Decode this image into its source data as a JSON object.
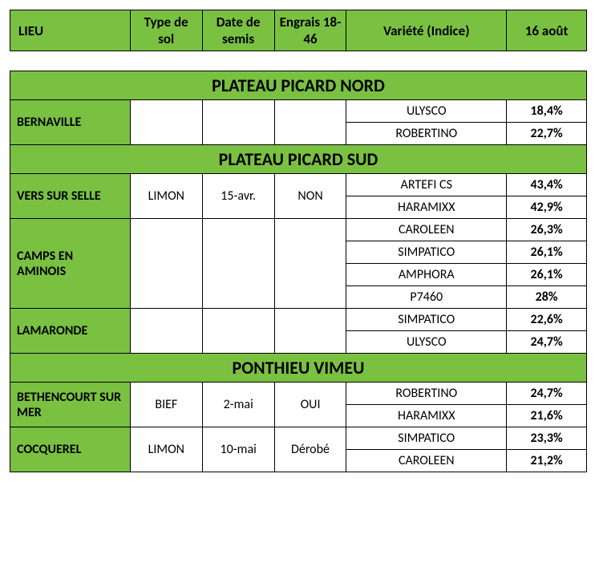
{
  "columns": [
    {
      "key": "lieu",
      "label": "LIEU"
    },
    {
      "key": "sol",
      "label": "Type de sol"
    },
    {
      "key": "date",
      "label": "Date de semis"
    },
    {
      "key": "engrais",
      "label": "Engrais 18-46"
    },
    {
      "key": "variete",
      "label": "Variété (Indice)"
    },
    {
      "key": "pct",
      "label": "16 août"
    }
  ],
  "regions": [
    {
      "name": "PLATEAU PICARD NORD",
      "lieux": [
        {
          "lieu": "BERNAVILLE",
          "sol": "",
          "date": "",
          "engrais": "",
          "rows": [
            {
              "variete": "ULYSCO",
              "pct": "18,4%"
            },
            {
              "variete": "ROBERTINO",
              "pct": "22,7%"
            }
          ]
        }
      ]
    },
    {
      "name": "PLATEAU PICARD SUD",
      "lieux": [
        {
          "lieu": "VERS SUR SELLE",
          "sol": "LIMON",
          "date": "15-avr.",
          "engrais": "NON",
          "rows": [
            {
              "variete": "ARTEFI CS",
              "pct": "43,4%"
            },
            {
              "variete": "HARAMIXX",
              "pct": "42,9%"
            }
          ]
        },
        {
          "lieu": "CAMPS EN AMINOIS",
          "sol": "",
          "date": "",
          "engrais": "",
          "rows": [
            {
              "variete": "CAROLEEN",
              "pct": "26,3%"
            },
            {
              "variete": "SIMPATICO",
              "pct": "26,1%"
            },
            {
              "variete": "AMPHORA",
              "pct": "26,1%"
            },
            {
              "variete": "P7460",
              "pct": "28%"
            }
          ]
        },
        {
          "lieu": "LAMARONDE",
          "sol": "",
          "date": "",
          "engrais": "",
          "rows": [
            {
              "variete": "SIMPATICO",
              "pct": "22,6%"
            },
            {
              "variete": "ULYSCO",
              "pct": "24,7%"
            }
          ]
        }
      ]
    },
    {
      "name": "PONTHIEU VIMEU",
      "lieux": [
        {
          "lieu": "BETHENCOURT SUR MER",
          "sol": "BIEF",
          "date": "2-mai",
          "engrais": "OUI",
          "rows": [
            {
              "variete": "ROBERTINO",
              "pct": "24,7%"
            },
            {
              "variete": "HARAMIXX",
              "pct": "21,6%"
            }
          ]
        },
        {
          "lieu": "COCQUEREL",
          "sol": "LIMON",
          "date": "10-mai",
          "engrais": "Dérobé",
          "rows": [
            {
              "variete": "SIMPATICO",
              "pct": "23,3%"
            },
            {
              "variete": "CAROLEEN",
              "pct": "21,2%"
            }
          ]
        }
      ]
    }
  ],
  "style": {
    "header_bg": "#7ac142",
    "border_color": "#000000",
    "region_fontsize": 22,
    "header_fontsize": 17,
    "cell_fontsize": 16
  }
}
